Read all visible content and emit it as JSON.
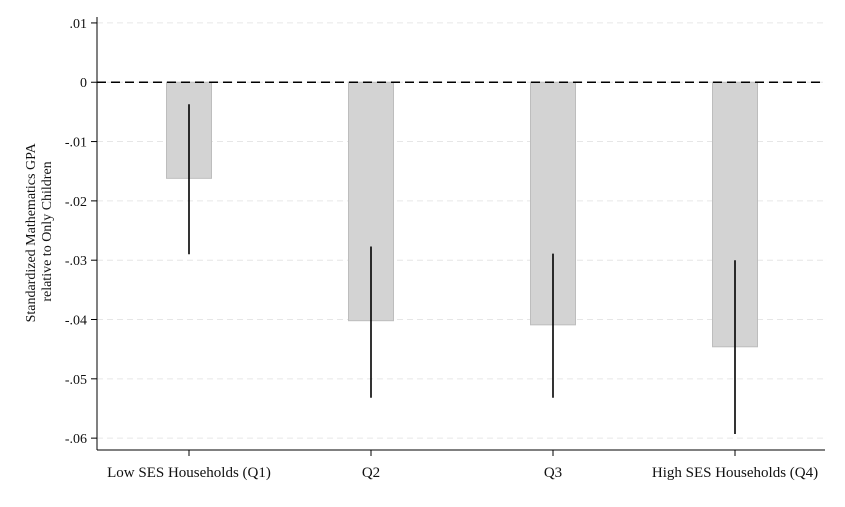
{
  "chart_data": {
    "type": "bar",
    "categories": [
      "Low SES Households (Q1)",
      "Q2",
      "Q3",
      "High SES Households (Q4)"
    ],
    "values": [
      -0.0162,
      -0.0402,
      -0.0409,
      -0.0446
    ],
    "error_bars": [
      {
        "low": -0.029,
        "high": -0.0037
      },
      {
        "low": -0.0532,
        "high": -0.0277
      },
      {
        "low": -0.0532,
        "high": -0.0289
      },
      {
        "low": -0.0593,
        "high": -0.03
      }
    ],
    "ylabel_lines": [
      "Standardized Mathematics GPA",
      "relative to Only Children"
    ],
    "ylim": [
      -0.062,
      0.011
    ],
    "yticks": [
      0.01,
      0,
      -0.01,
      -0.02,
      -0.03,
      -0.04,
      -0.05,
      -0.06
    ],
    "ytick_labels": [
      ".01",
      "0",
      "-.01",
      "-.02",
      "-.03",
      "-.04",
      "-.05",
      "-.06"
    ],
    "reference_line": {
      "y": 0,
      "style": "dashed"
    },
    "grid": true,
    "colors": {
      "bar_fill": "#d3d3d3",
      "bar_stroke": "#bdbdbd",
      "error_bar": "#000000",
      "grid": "#e6e6e6",
      "axis": "#000000"
    }
  }
}
